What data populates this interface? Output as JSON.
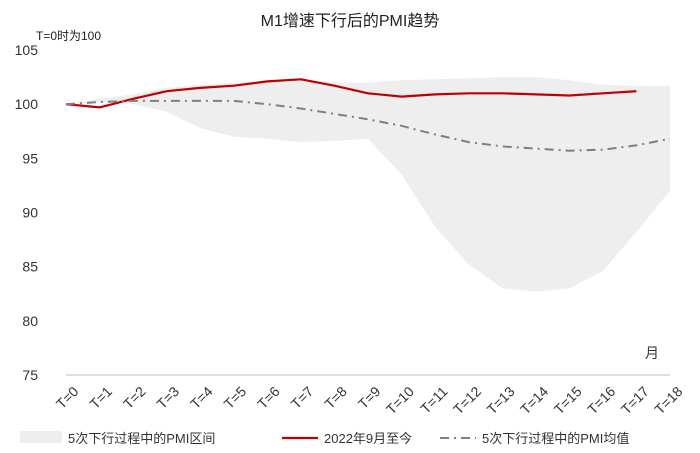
{
  "chart_data": {
    "type": "line",
    "title": "M1增速下行后的PMI趋势",
    "note": "T=0时为100",
    "x_unit_label": "月",
    "categories": [
      "T=0",
      "T=1",
      "T=2",
      "T=3",
      "T=4",
      "T=5",
      "T=6",
      "T=7",
      "T=8",
      "T=9",
      "T=10",
      "T=11",
      "T=12",
      "T=13",
      "T=14",
      "T=15",
      "T=16",
      "T=17",
      "T=18"
    ],
    "ylim": [
      75,
      105
    ],
    "yticks": [
      75,
      80,
      85,
      90,
      95,
      100,
      105
    ],
    "grid": false,
    "legend_position": "bottom",
    "band": {
      "name": "5次下行过程中的PMI区间",
      "color": "#eeeeee",
      "upper": [
        100,
        100.5,
        100.9,
        101.5,
        101.8,
        102.0,
        102.1,
        102.2,
        102.0,
        102.0,
        102.2,
        102.3,
        102.4,
        102.5,
        102.5,
        102.2,
        101.8,
        101.7,
        101.7
      ],
      "lower": [
        100,
        100.2,
        100.0,
        99.3,
        97.8,
        97.0,
        96.8,
        96.5,
        96.6,
        96.8,
        93.5,
        88.7,
        85.2,
        83.0,
        82.7,
        83.0,
        84.6,
        88.2,
        92.0
      ]
    },
    "series": [
      {
        "name": "2022年9月至今",
        "color": "#c00000",
        "style": "solid",
        "values": [
          100,
          99.7,
          100.5,
          101.2,
          101.5,
          101.7,
          102.1,
          102.3,
          101.7,
          101.0,
          100.7,
          100.9,
          101.0,
          101.0,
          100.9,
          100.8,
          101.0,
          101.2,
          null
        ]
      },
      {
        "name": "5次下行过程中的PMI均值",
        "color": "#7f7f7f",
        "style": "dashdot",
        "values": [
          100,
          100.2,
          100.3,
          100.3,
          100.3,
          100.3,
          100.0,
          99.6,
          99.1,
          98.6,
          98.0,
          97.2,
          96.5,
          96.1,
          95.9,
          95.7,
          95.8,
          96.2,
          96.8
        ]
      }
    ]
  }
}
